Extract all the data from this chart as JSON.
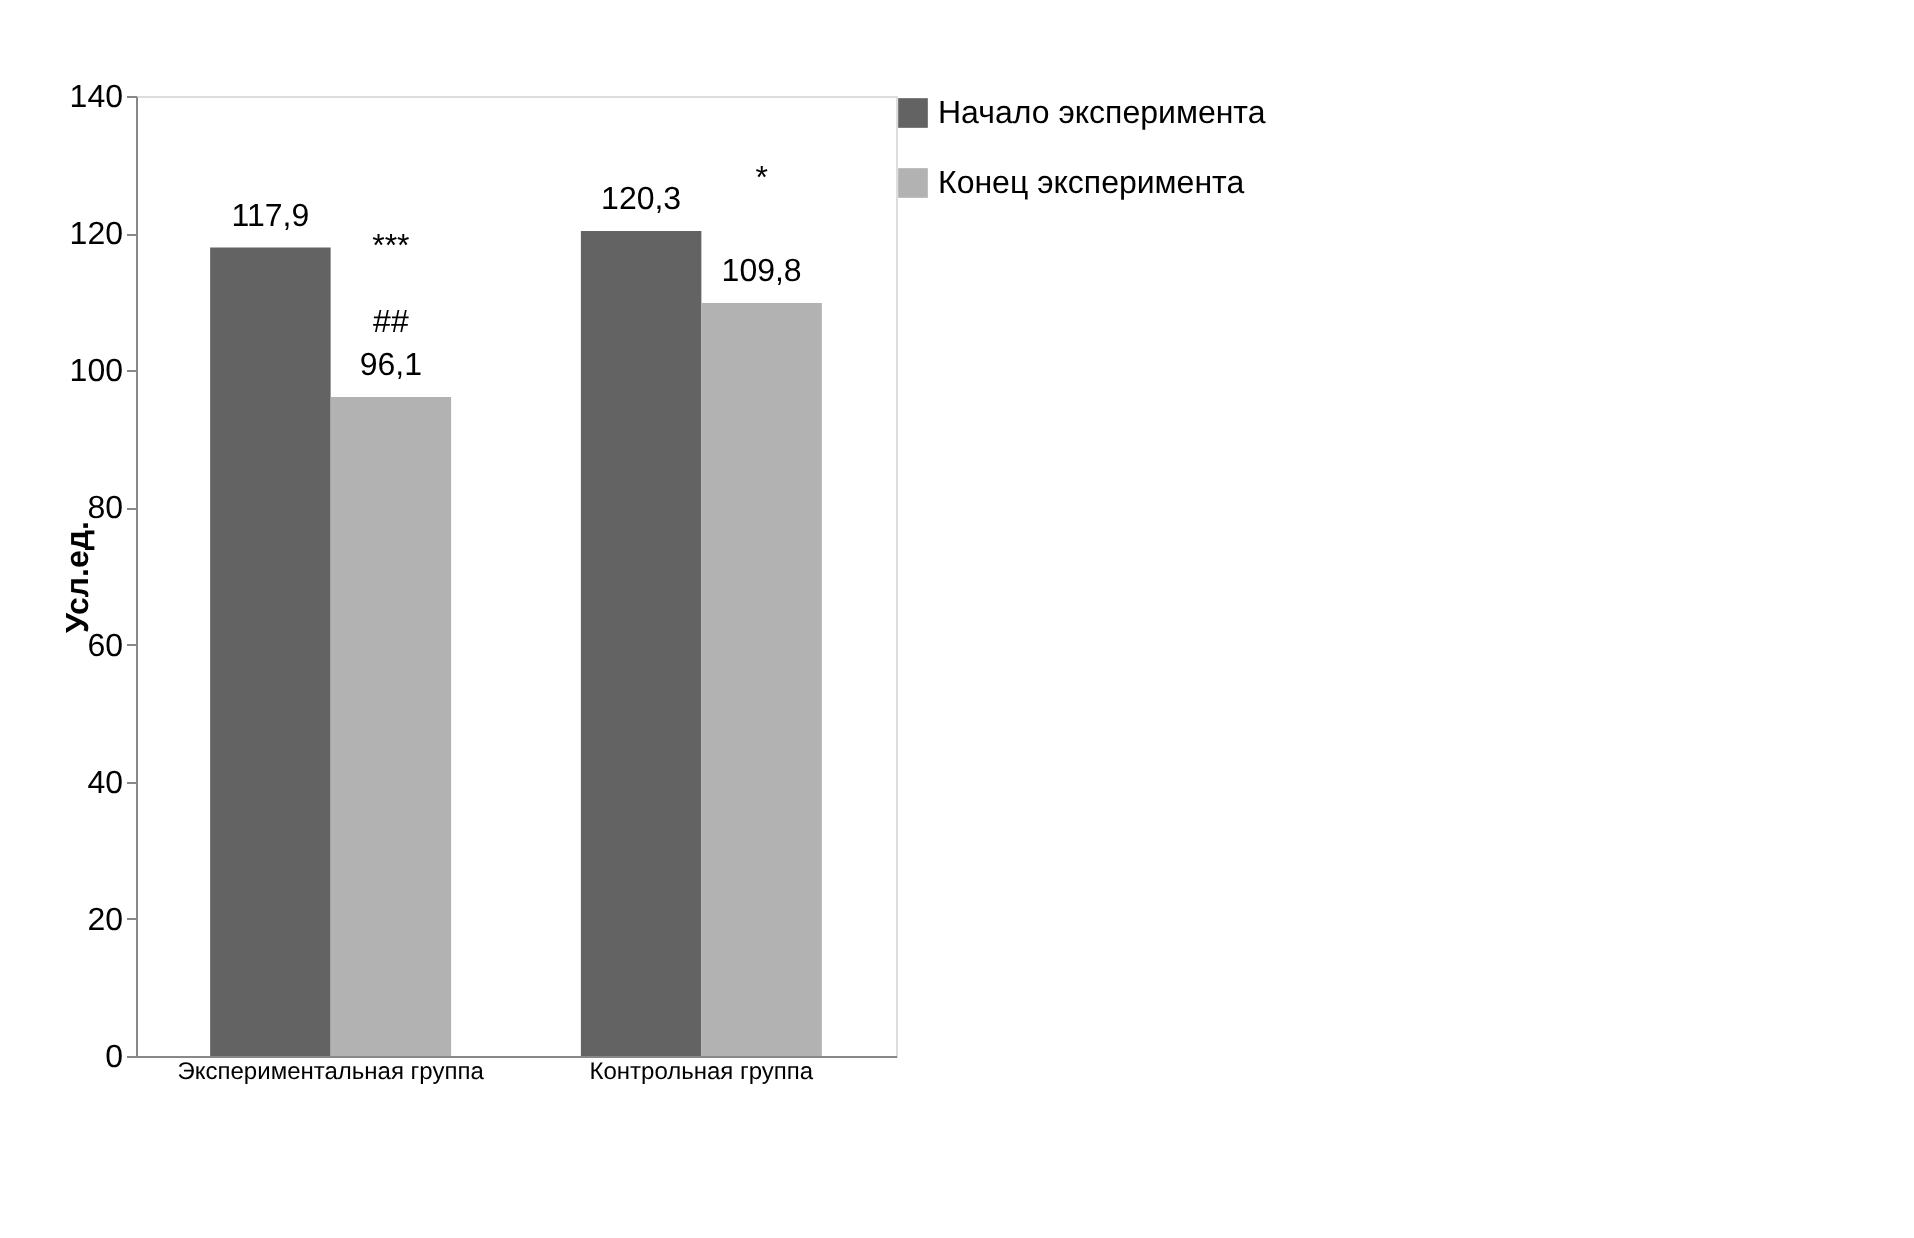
{
  "chart_data": {
    "type": "bar",
    "ylabel": "Усл.ед.",
    "categories": [
      "Экспериментальная группа",
      "Контрольная группа"
    ],
    "series": [
      {
        "name": "Начало эксперимента",
        "color": "#636363",
        "values": [
          117.9,
          120.3
        ],
        "value_labels": [
          "117,9",
          "120,3"
        ]
      },
      {
        "name": "Конец эксперимента",
        "color": "#b2b2b2",
        "values": [
          96.1,
          109.8
        ],
        "value_labels": [
          "96,1",
          "109,8"
        ]
      }
    ],
    "ylim": [
      0,
      140
    ],
    "yticks": [
      0,
      20,
      40,
      60,
      80,
      100,
      120,
      140
    ],
    "grid": false,
    "legend": "right",
    "annotations": [
      "***",
      "##",
      "*"
    ]
  }
}
